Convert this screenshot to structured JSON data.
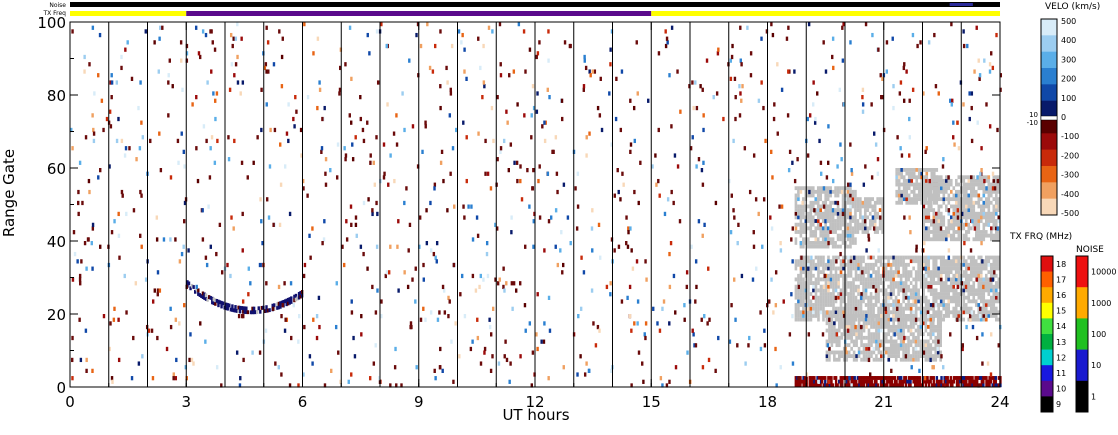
{
  "chart_data": {
    "type": "heatmap",
    "title": "",
    "xlabel": "UT hours",
    "ylabel": "Range Gate",
    "xlim": [
      0,
      24
    ],
    "ylim": [
      0,
      100
    ],
    "x_ticks": [
      "0",
      "3",
      "6",
      "9",
      "12",
      "15",
      "18",
      "21",
      "24"
    ],
    "y_ticks": [
      "0",
      "20",
      "40",
      "60",
      "80",
      "100"
    ],
    "top_bars": {
      "noise_label": "Noise",
      "freq_label": "TX Freq",
      "freq_segments": [
        {
          "start": 0,
          "end": 3,
          "color": "#ffff00"
        },
        {
          "start": 3,
          "end": 15,
          "color": "#5a0a8c"
        },
        {
          "start": 15,
          "end": 24,
          "color": "#ffff00"
        }
      ]
    },
    "vertical_lines_at_hours": [
      1,
      2,
      3,
      4,
      5,
      6,
      7,
      8,
      9,
      10,
      11,
      12,
      13,
      14,
      15,
      16,
      17,
      18,
      19,
      20,
      21,
      22,
      23
    ],
    "ground_scatter_color": "#c0c0c0",
    "scatter_regions": [
      {
        "x0": 18.7,
        "x1": 20.3,
        "y0": 38,
        "y1": 55
      },
      {
        "x0": 20.3,
        "x1": 21.0,
        "y0": 42,
        "y1": 52
      },
      {
        "x0": 21.3,
        "x1": 22.4,
        "y0": 50,
        "y1": 60
      },
      {
        "x0": 22.0,
        "x1": 24.0,
        "y0": 40,
        "y1": 58
      },
      {
        "x0": 18.7,
        "x1": 24.0,
        "y0": 18,
        "y1": 36
      },
      {
        "x0": 19.5,
        "x1": 22.5,
        "y0": 7,
        "y1": 20
      }
    ],
    "feature_arc": {
      "x0": 3.0,
      "x1": 6.0,
      "color": "#10106e"
    },
    "near_range_band": {
      "x0": 18.7,
      "x1": 24.0,
      "y0": 0,
      "y1": 3,
      "color": "#8b0000"
    },
    "velocity_colorbar": {
      "label": "VELO (km/s)",
      "ticks": [
        "500",
        "400",
        "300",
        "200",
        "100",
        "0",
        "-100",
        "-200",
        "-300",
        "-400",
        "-500"
      ],
      "inner_labels": [
        "10",
        "-10"
      ],
      "colors": [
        "#d8ecf8",
        "#9ccdf0",
        "#5aaee8",
        "#2a7fd0",
        "#1048a8",
        "#081a6a",
        "#5a0000",
        "#9b0a0a",
        "#c82a0a",
        "#e86414",
        "#f0a060",
        "#f8d8b8"
      ]
    },
    "tx_freq_colorbar": {
      "label": "TX FRQ (MHz)",
      "ticks": [
        "18",
        "17",
        "16",
        "15",
        "14",
        "13",
        "12",
        "11",
        "10",
        "9"
      ],
      "colors": [
        "#e01010",
        "#ff6000",
        "#ffaa00",
        "#ffff00",
        "#40e040",
        "#00b040",
        "#00d0d0",
        "#1818e0",
        "#5a0a8c",
        "#000000"
      ]
    },
    "noise_colorbar": {
      "label": "NOISE",
      "ticks": [
        "10000",
        "1000",
        "100",
        "10",
        "1"
      ],
      "colors": [
        "#ee1010",
        "#ffaa00",
        "#20c020",
        "#1a1ad0",
        "#000000"
      ]
    }
  }
}
